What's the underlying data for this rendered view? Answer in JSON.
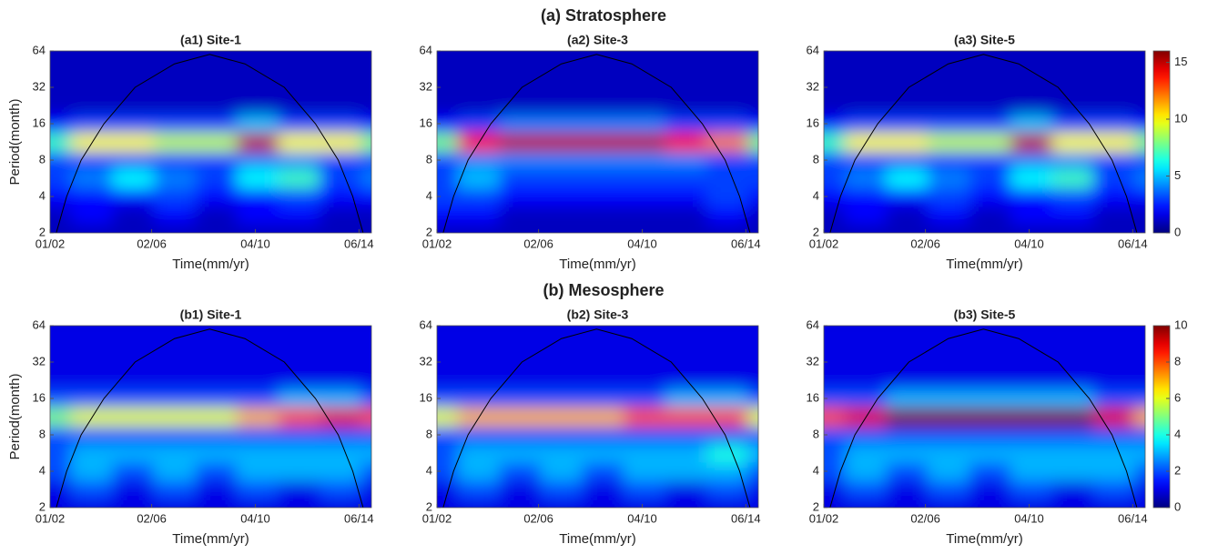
{
  "headings": [
    "(a) Stratosphere",
    "(b) Mesosphere"
  ],
  "chart_data": [
    {
      "type": "heatmap",
      "title": "(a1) Site-1",
      "xlabel": "Time(mm/yr)",
      "ylabel": "Period(month)",
      "yscale": "log2",
      "xlim": [
        0,
        155
      ],
      "ylim": [
        2,
        64
      ],
      "xticks": [
        {
          "value": 0,
          "label": "01/02"
        },
        {
          "value": 49,
          "label": "02/06"
        },
        {
          "value": 99,
          "label": "04/10"
        },
        {
          "value": 149,
          "label": "06/14"
        }
      ],
      "yticks": [
        2,
        4,
        8,
        16,
        32,
        64
      ],
      "x": [
        0,
        20,
        40,
        60,
        80,
        100,
        120,
        140,
        160
      ],
      "y": [
        2,
        2.83,
        4,
        5.66,
        8,
        11.3,
        16,
        22.6,
        32,
        45.3,
        64
      ],
      "z": [
        [
          1,
          1,
          1,
          1,
          1,
          1,
          1,
          1,
          1
        ],
        [
          1,
          2,
          1,
          2,
          1,
          2,
          2,
          1,
          1
        ],
        [
          2,
          2,
          2,
          3,
          2,
          2,
          3,
          2,
          2
        ],
        [
          3,
          4,
          6,
          4,
          3,
          6,
          7,
          3,
          4
        ],
        [
          3,
          3,
          3,
          3,
          3,
          4,
          4,
          3,
          3
        ],
        [
          7,
          10,
          10,
          9,
          9,
          15,
          10,
          10,
          8
        ],
        [
          2,
          3,
          3,
          3,
          3,
          5,
          3,
          3,
          2
        ],
        [
          1,
          1,
          1,
          1,
          1,
          1,
          1,
          1,
          1
        ],
        [
          1,
          1,
          1,
          1,
          1,
          1,
          1,
          1,
          1
        ],
        [
          1,
          1,
          1,
          1,
          1,
          1,
          1,
          1,
          1
        ],
        [
          1,
          1,
          1,
          1,
          1,
          1,
          1,
          1,
          1
        ]
      ],
      "coi_x": [
        3,
        8,
        15,
        26,
        41,
        60,
        77,
        94,
        113,
        128,
        139,
        146,
        151
      ],
      "coi_y": [
        2,
        4,
        8,
        16,
        32,
        50,
        60,
        50,
        32,
        16,
        8,
        4,
        2
      ]
    },
    {
      "type": "heatmap",
      "title": "(a2) Site-3",
      "xlabel": "Time(mm/yr)",
      "yscale": "log2",
      "xlim": [
        0,
        155
      ],
      "ylim": [
        2,
        64
      ],
      "xticks": [
        {
          "value": 0,
          "label": "01/02"
        },
        {
          "value": 49,
          "label": "02/06"
        },
        {
          "value": 99,
          "label": "04/10"
        },
        {
          "value": 149,
          "label": "06/14"
        }
      ],
      "yticks": [
        2,
        4,
        8,
        16,
        32,
        64
      ],
      "x": [
        0,
        20,
        40,
        60,
        80,
        100,
        120,
        140,
        160
      ],
      "y": [
        2,
        2.83,
        4,
        5.66,
        8,
        11.3,
        16,
        22.6,
        32,
        45.3,
        64
      ],
      "z": [
        [
          1,
          1,
          1,
          1,
          1,
          1,
          1,
          1,
          1
        ],
        [
          2,
          2,
          1,
          1,
          1,
          1,
          1,
          2,
          1
        ],
        [
          3,
          3,
          2,
          2,
          2,
          2,
          2,
          3,
          2
        ],
        [
          3,
          5,
          3,
          3,
          3,
          3,
          3,
          3,
          3
        ],
        [
          3,
          4,
          4,
          4,
          4,
          4,
          4,
          3,
          3
        ],
        [
          8,
          14,
          15,
          15,
          15,
          15,
          14,
          12,
          8
        ],
        [
          2,
          3,
          4,
          4,
          4,
          4,
          3,
          3,
          2
        ],
        [
          1,
          1,
          1,
          1,
          1,
          1,
          1,
          1,
          1
        ],
        [
          1,
          1,
          1,
          1,
          1,
          1,
          1,
          1,
          1
        ],
        [
          1,
          1,
          1,
          1,
          1,
          1,
          1,
          1,
          1
        ],
        [
          1,
          1,
          1,
          1,
          1,
          1,
          1,
          1,
          1
        ]
      ],
      "coi_x": [
        3,
        8,
        15,
        26,
        41,
        60,
        77,
        94,
        113,
        128,
        139,
        146,
        151
      ],
      "coi_y": [
        2,
        4,
        8,
        16,
        32,
        50,
        60,
        50,
        32,
        16,
        8,
        4,
        2
      ]
    },
    {
      "type": "heatmap",
      "title": "(a3) Site-5",
      "xlabel": "Time(mm/yr)",
      "yscale": "log2",
      "xlim": [
        0,
        155
      ],
      "ylim": [
        2,
        64
      ],
      "xticks": [
        {
          "value": 0,
          "label": "01/02"
        },
        {
          "value": 49,
          "label": "02/06"
        },
        {
          "value": 99,
          "label": "04/10"
        },
        {
          "value": 149,
          "label": "06/14"
        }
      ],
      "yticks": [
        2,
        4,
        8,
        16,
        32,
        64
      ],
      "x": [
        0,
        20,
        40,
        60,
        80,
        100,
        120,
        140,
        160
      ],
      "y": [
        2,
        2.83,
        4,
        5.66,
        8,
        11.3,
        16,
        22.6,
        32,
        45.3,
        64
      ],
      "z": [
        [
          1,
          1,
          1,
          1,
          1,
          1,
          1,
          1,
          1
        ],
        [
          1,
          2,
          1,
          2,
          1,
          2,
          2,
          1,
          1
        ],
        [
          2,
          2,
          2,
          3,
          2,
          2,
          3,
          2,
          2
        ],
        [
          3,
          4,
          6,
          4,
          3,
          6,
          7,
          3,
          4
        ],
        [
          3,
          3,
          3,
          3,
          3,
          4,
          4,
          3,
          3
        ],
        [
          7,
          10,
          10,
          9,
          9,
          15,
          10,
          10,
          8
        ],
        [
          2,
          3,
          3,
          3,
          3,
          5,
          3,
          3,
          2
        ],
        [
          1,
          1,
          1,
          1,
          1,
          1,
          1,
          1,
          1
        ],
        [
          1,
          1,
          1,
          1,
          1,
          1,
          1,
          1,
          1
        ],
        [
          1,
          1,
          1,
          1,
          1,
          1,
          1,
          1,
          1
        ],
        [
          1,
          1,
          1,
          1,
          1,
          1,
          1,
          1,
          1
        ]
      ],
      "coi_x": [
        3,
        8,
        15,
        26,
        41,
        60,
        77,
        94,
        113,
        128,
        139,
        146,
        151
      ],
      "coi_y": [
        2,
        4,
        8,
        16,
        32,
        50,
        60,
        50,
        32,
        16,
        8,
        4,
        2
      ],
      "clim": [
        0,
        16
      ],
      "cticks": [
        0,
        5,
        10,
        15
      ]
    },
    {
      "type": "heatmap",
      "title": "(b1) Site-1",
      "xlabel": "Time(mm/yr)",
      "ylabel": "Period(month)",
      "yscale": "log2",
      "xlim": [
        0,
        155
      ],
      "ylim": [
        2,
        64
      ],
      "xticks": [
        {
          "value": 0,
          "label": "01/02"
        },
        {
          "value": 49,
          "label": "02/06"
        },
        {
          "value": 99,
          "label": "04/10"
        },
        {
          "value": 149,
          "label": "06/14"
        }
      ],
      "yticks": [
        2,
        4,
        8,
        16,
        32,
        64
      ],
      "x": [
        0,
        20,
        40,
        60,
        80,
        100,
        120,
        140,
        160
      ],
      "y": [
        2,
        2.83,
        4,
        5.66,
        8,
        11.3,
        16,
        22.6,
        32,
        45.3,
        64
      ],
      "z": [
        [
          1,
          1,
          1,
          1,
          1,
          1,
          1,
          1,
          1
        ],
        [
          1,
          2,
          1,
          2,
          1,
          2,
          1,
          2,
          1
        ],
        [
          2,
          3,
          2,
          3,
          2,
          3,
          3,
          3,
          2
        ],
        [
          2,
          3,
          3,
          3,
          3,
          3,
          3,
          3,
          3
        ],
        [
          2,
          2,
          2,
          2,
          2,
          2,
          2,
          2,
          2
        ],
        [
          5,
          6,
          6,
          6,
          6,
          7,
          8,
          9,
          8
        ],
        [
          2,
          2,
          2,
          2,
          2,
          2,
          3,
          3,
          2
        ],
        [
          1,
          1,
          1,
          1,
          1,
          1,
          1,
          1,
          1
        ],
        [
          1,
          1,
          1,
          1,
          1,
          1,
          1,
          1,
          1
        ],
        [
          1,
          1,
          1,
          1,
          1,
          1,
          1,
          1,
          1
        ],
        [
          1,
          1,
          1,
          1,
          1,
          1,
          1,
          1,
          1
        ]
      ],
      "coi_x": [
        3,
        8,
        15,
        26,
        41,
        60,
        77,
        94,
        113,
        128,
        139,
        146,
        151
      ],
      "coi_y": [
        2,
        4,
        8,
        16,
        32,
        50,
        60,
        50,
        32,
        16,
        8,
        4,
        2
      ]
    },
    {
      "type": "heatmap",
      "title": "(b2) Site-3",
      "xlabel": "Time(mm/yr)",
      "yscale": "log2",
      "xlim": [
        0,
        155
      ],
      "ylim": [
        2,
        64
      ],
      "xticks": [
        {
          "value": 0,
          "label": "01/02"
        },
        {
          "value": 49,
          "label": "02/06"
        },
        {
          "value": 99,
          "label": "04/10"
        },
        {
          "value": 149,
          "label": "06/14"
        }
      ],
      "yticks": [
        2,
        4,
        8,
        16,
        32,
        64
      ],
      "x": [
        0,
        20,
        40,
        60,
        80,
        100,
        120,
        140,
        160
      ],
      "y": [
        2,
        2.83,
        4,
        5.66,
        8,
        11.3,
        16,
        22.6,
        32,
        45.3,
        64
      ],
      "z": [
        [
          1,
          1,
          1,
          1,
          1,
          1,
          1,
          1,
          1
        ],
        [
          1,
          2,
          1,
          2,
          1,
          2,
          1,
          2,
          1
        ],
        [
          2,
          3,
          2,
          3,
          2,
          3,
          3,
          3,
          2
        ],
        [
          2,
          3,
          3,
          3,
          3,
          3,
          3,
          4,
          3
        ],
        [
          2,
          2,
          2,
          2,
          2,
          2,
          2,
          2,
          2
        ],
        [
          6,
          7,
          7,
          7,
          7,
          8,
          8,
          8,
          6
        ],
        [
          2,
          2,
          2,
          2,
          2,
          2,
          3,
          3,
          2
        ],
        [
          1,
          1,
          1,
          1,
          1,
          1,
          1,
          1,
          1
        ],
        [
          1,
          1,
          1,
          1,
          1,
          1,
          1,
          1,
          1
        ],
        [
          1,
          1,
          1,
          1,
          1,
          1,
          1,
          1,
          1
        ],
        [
          1,
          1,
          1,
          1,
          1,
          1,
          1,
          1,
          1
        ]
      ],
      "coi_x": [
        3,
        8,
        15,
        26,
        41,
        60,
        77,
        94,
        113,
        128,
        139,
        146,
        151
      ],
      "coi_y": [
        2,
        4,
        8,
        16,
        32,
        50,
        60,
        50,
        32,
        16,
        8,
        4,
        2
      ]
    },
    {
      "type": "heatmap",
      "title": "(b3) Site-5",
      "xlabel": "Time(mm/yr)",
      "yscale": "log2",
      "xlim": [
        0,
        155
      ],
      "ylim": [
        2,
        64
      ],
      "xticks": [
        {
          "value": 0,
          "label": "01/02"
        },
        {
          "value": 49,
          "label": "02/06"
        },
        {
          "value": 99,
          "label": "04/10"
        },
        {
          "value": 149,
          "label": "06/14"
        }
      ],
      "yticks": [
        2,
        4,
        8,
        16,
        32,
        64
      ],
      "x": [
        0,
        20,
        40,
        60,
        80,
        100,
        120,
        140,
        160
      ],
      "y": [
        2,
        2.83,
        4,
        5.66,
        8,
        11.3,
        16,
        22.6,
        32,
        45.3,
        64
      ],
      "z": [
        [
          1,
          1,
          1,
          1,
          1,
          1,
          1,
          1,
          1
        ],
        [
          1,
          2,
          1,
          2,
          1,
          2,
          1,
          2,
          1
        ],
        [
          2,
          3,
          2,
          3,
          2,
          3,
          3,
          3,
          2
        ],
        [
          2,
          3,
          3,
          3,
          3,
          3,
          3,
          3,
          3
        ],
        [
          2,
          2,
          2,
          2,
          2,
          2,
          2,
          2,
          2
        ],
        [
          8,
          9,
          10,
          10,
          10,
          10,
          10,
          9,
          7
        ],
        [
          2,
          2,
          3,
          3,
          3,
          3,
          3,
          2,
          2
        ],
        [
          1,
          1,
          1,
          1,
          1,
          1,
          1,
          1,
          1
        ],
        [
          1,
          1,
          1,
          1,
          1,
          1,
          1,
          1,
          1
        ],
        [
          1,
          1,
          1,
          1,
          1,
          1,
          1,
          1,
          1
        ],
        [
          1,
          1,
          1,
          1,
          1,
          1,
          1,
          1,
          1
        ]
      ],
      "coi_x": [
        3,
        8,
        15,
        26,
        41,
        60,
        77,
        94,
        113,
        128,
        139,
        146,
        151
      ],
      "coi_y": [
        2,
        4,
        8,
        16,
        32,
        50,
        60,
        50,
        32,
        16,
        8,
        4,
        2
      ],
      "clim": [
        0,
        10
      ],
      "cticks": [
        0,
        2,
        4,
        6,
        8,
        10
      ]
    }
  ]
}
